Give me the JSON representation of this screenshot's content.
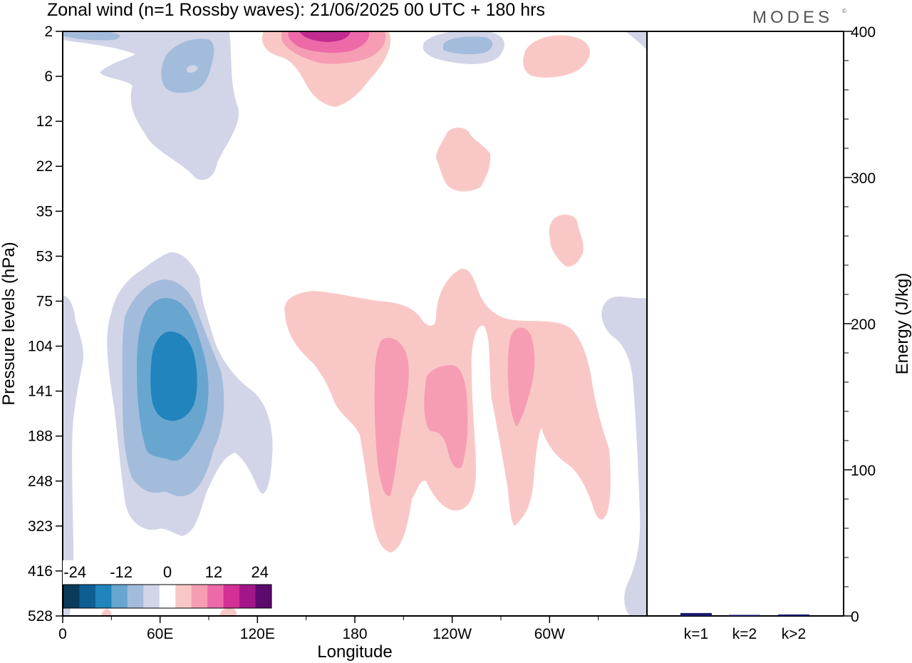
{
  "title": "Zonal wind (n=1 Rossby waves):  21/06/2025  00 UTC  + 180 hrs",
  "brand": "MODES",
  "brand_mark": "©",
  "chart_data": [
    {
      "type": "heatmap",
      "title": "Zonal wind (n=1 Rossby waves):  21/06/2025  00 UTC  + 180 hrs",
      "xlabel": "Longitude",
      "ylabel": "Pressure levels (hPa)",
      "x_ticks": [
        "0",
        "60E",
        "120E",
        "180",
        "120W",
        "60W"
      ],
      "x_tick_degrees": [
        0,
        60,
        120,
        180,
        240,
        300
      ],
      "xlim": [
        0,
        360
      ],
      "y_ticks": [
        "2",
        "6",
        "12",
        "22",
        "35",
        "53",
        "75",
        "104",
        "141",
        "188",
        "248",
        "323",
        "416",
        "528"
      ],
      "y_reversed": true,
      "colorbar": {
        "tick_labels": [
          "-24",
          "-12",
          "0",
          "12",
          "24"
        ],
        "colors": [
          "#0c3a5a",
          "#0e5e92",
          "#2184bc",
          "#68a6d0",
          "#a3bcdc",
          "#d2d5e7",
          "#ffffff",
          "#f9c8c6",
          "#f69db3",
          "#ed6aa8",
          "#d32f95",
          "#a3168a",
          "#5c0a6e"
        ]
      },
      "features": [
        {
          "sign": "negative",
          "peak": -21,
          "lon": 70,
          "level_hPa": 141
        },
        {
          "sign": "negative",
          "peak": -6,
          "lon": 80,
          "level_hPa": 6
        },
        {
          "sign": "negative",
          "peak": -3,
          "lon": 15,
          "level_hPa": 2
        },
        {
          "sign": "negative",
          "peak": -4,
          "lon": 255,
          "level_hPa": 2
        },
        {
          "sign": "negative",
          "peak": -3,
          "lon": 0,
          "level_hPa": 248
        },
        {
          "sign": "negative",
          "peak": -3,
          "lon": 358,
          "level_hPa": 104
        },
        {
          "sign": "positive",
          "peak": 21,
          "lon": 165,
          "level_hPa": 2
        },
        {
          "sign": "positive",
          "peak": 8,
          "lon": 203,
          "level_hPa": 141
        },
        {
          "sign": "positive",
          "peak": 8,
          "lon": 238,
          "level_hPa": 141
        },
        {
          "sign": "positive",
          "peak": 7,
          "lon": 283,
          "level_hPa": 141
        },
        {
          "sign": "positive",
          "peak": 4,
          "lon": 270,
          "level_hPa": 22
        },
        {
          "sign": "positive",
          "peak": 3,
          "lon": 305,
          "level_hPa": 6
        },
        {
          "sign": "positive",
          "peak": 3,
          "lon": 310,
          "level_hPa": 35
        }
      ]
    },
    {
      "type": "bar",
      "ylabel": "Energy (J/kg)",
      "ylim": [
        0,
        400
      ],
      "y_ticks": [
        "0",
        "100",
        "200",
        "300",
        "400"
      ],
      "categories": [
        "k=1",
        "k=2",
        "k>2"
      ],
      "values": [
        2,
        0.5,
        1
      ],
      "bar_color": "#1a1a6e"
    }
  ]
}
